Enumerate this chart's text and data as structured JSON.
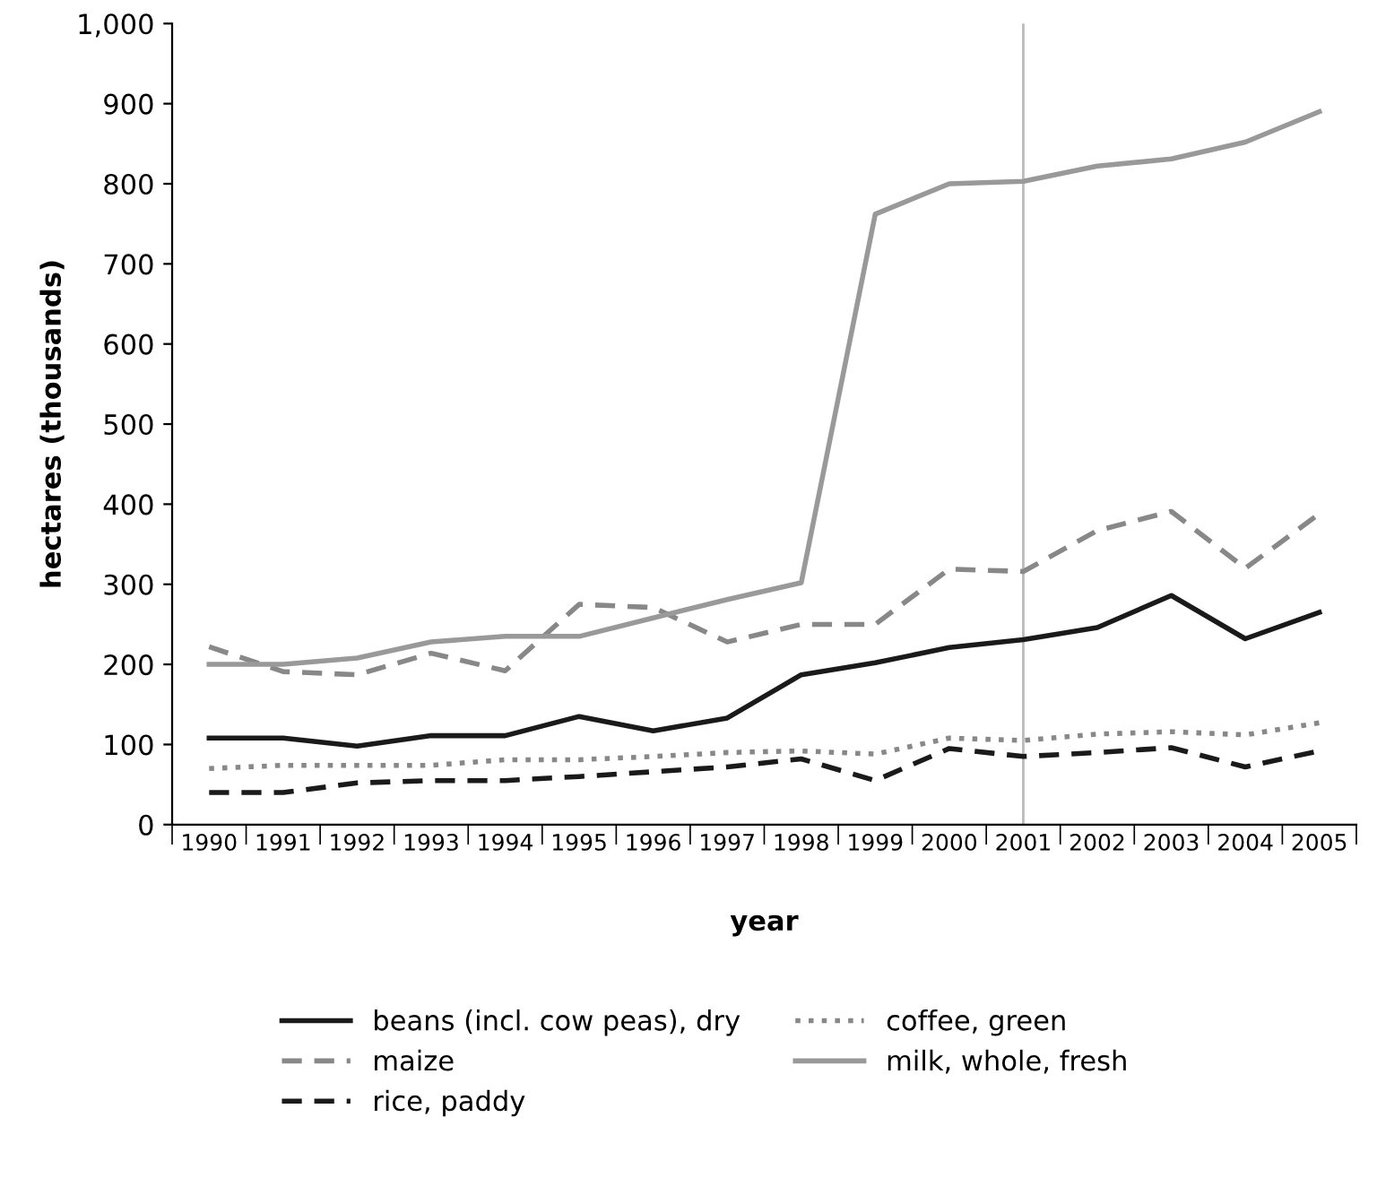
{
  "chart_data": {
    "type": "line",
    "xlabel": "year",
    "ylabel": "hectares (thousands)",
    "categories": [
      "1990",
      "1991",
      "1992",
      "1993",
      "1994",
      "1995",
      "1996",
      "1997",
      "1998",
      "1999",
      "2000",
      "2001",
      "2002",
      "2003",
      "2004",
      "2005"
    ],
    "ylim": [
      0,
      1000
    ],
    "yticks": [
      0,
      100,
      200,
      300,
      400,
      500,
      600,
      700,
      800,
      900,
      {
        "value": 1000,
        "label": "1,000"
      }
    ],
    "grid": false,
    "legend": "bottom",
    "marker": "none",
    "ref_lines": [
      {
        "axis": "x",
        "value": "2001",
        "color": "#bbbbbb",
        "line_style": "solid"
      }
    ],
    "series": [
      {
        "name": "beans (incl. cow peas), dry",
        "color": "#1a1a1a",
        "line_style": "solid",
        "values": [
          108,
          108,
          98,
          111,
          111,
          135,
          117,
          133,
          187,
          202,
          221,
          231,
          246,
          286,
          232,
          265
        ]
      },
      {
        "name": "maize",
        "color": "#888888",
        "line_style": "dashed",
        "values": [
          222,
          191,
          187,
          214,
          192,
          275,
          271,
          228,
          250,
          250,
          319,
          316,
          367,
          391,
          320,
          388
        ]
      },
      {
        "name": "rice, paddy",
        "color": "#1a1a1a",
        "line_style": "dashed",
        "values": [
          40,
          40,
          52,
          55,
          55,
          60,
          66,
          72,
          82,
          55,
          95,
          85,
          90,
          96,
          72,
          92
        ]
      },
      {
        "name": "coffee, green",
        "color": "#888888",
        "line_style": "dotted",
        "values": [
          70,
          74,
          74,
          74,
          81,
          81,
          85,
          90,
          92,
          88,
          108,
          105,
          113,
          116,
          112,
          127
        ]
      },
      {
        "name": "milk, whole, fresh",
        "color": "#999999",
        "line_style": "solid",
        "values": [
          200,
          200,
          208,
          228,
          235,
          235,
          258,
          281,
          302,
          762,
          800,
          803,
          822,
          831,
          852,
          890
        ]
      }
    ]
  }
}
